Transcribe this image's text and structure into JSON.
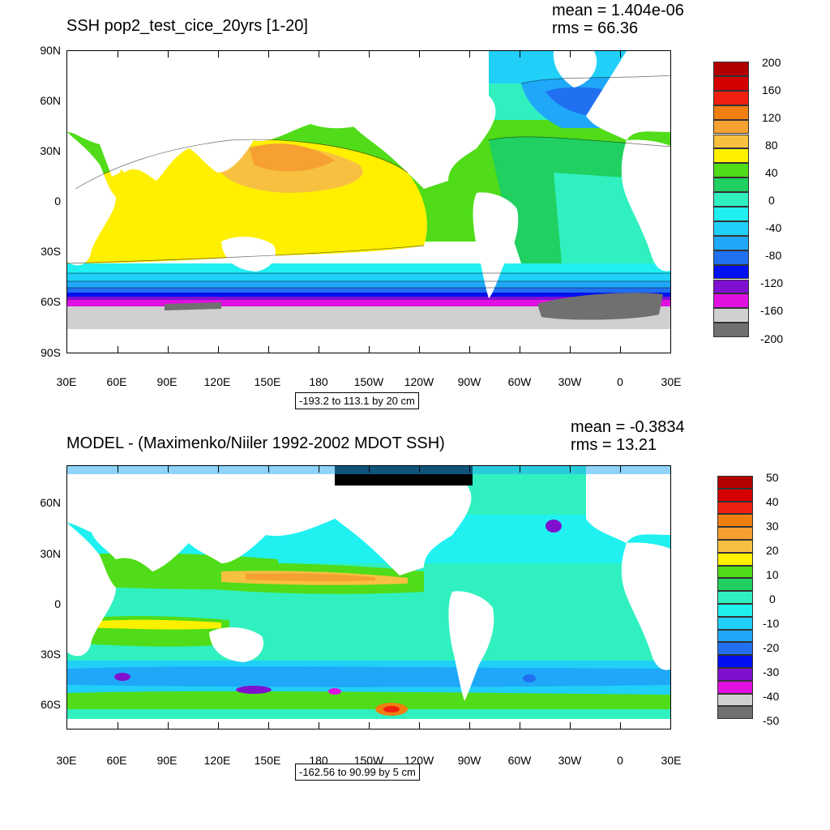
{
  "panels": [
    {
      "title": "SSH pop2_test_cice_20yrs [1-20]",
      "mean": "mean = 1.404e-06",
      "rms": "rms = 66.36",
      "range": "-193.2 to 113.1 by 20 cm",
      "y_ticks": [
        "90N",
        "60N",
        "30N",
        "0",
        "30S",
        "60S",
        "90S"
      ],
      "x_ticks": [
        "30E",
        "60E",
        "90E",
        "120E",
        "150E",
        "180",
        "150W",
        "120W",
        "90W",
        "60W",
        "30W",
        "0",
        "30E"
      ],
      "legend_labels": [
        "200",
        "160",
        "120",
        "80",
        "40",
        "0",
        "-40",
        "-80",
        "-120",
        "-160",
        "-200"
      ]
    },
    {
      "title": "MODEL - (Maximenko/Niiler 1992-2002 MDOT SSH)",
      "mean": "mean = -0.3834",
      "rms": "rms = 13.21",
      "range": "-162.56 to 90.99 by 5 cm",
      "y_ticks": [
        "60N",
        "30N",
        "0",
        "30S",
        "60S"
      ],
      "x_ticks": [
        "30E",
        "60E",
        "90E",
        "120E",
        "150E",
        "180",
        "150W",
        "120W",
        "90W",
        "60W",
        "30W",
        "0",
        "30E"
      ],
      "legend_labels": [
        "50",
        "40",
        "30",
        "20",
        "10",
        "0",
        "-10",
        "-20",
        "-30",
        "-40",
        "-50"
      ]
    }
  ],
  "colorbar": [
    "#b20000",
    "#d40000",
    "#f02010",
    "#f07f10",
    "#f5a030",
    "#f8c040",
    "#fff000",
    "#50dc18",
    "#20d060",
    "#30f0c0",
    "#20f0f0",
    "#20d0f8",
    "#20a8f8",
    "#2070f0",
    "#0010f0",
    "#8010d0",
    "#e010e0",
    "#d0d0d0",
    "#707070"
  ]
}
